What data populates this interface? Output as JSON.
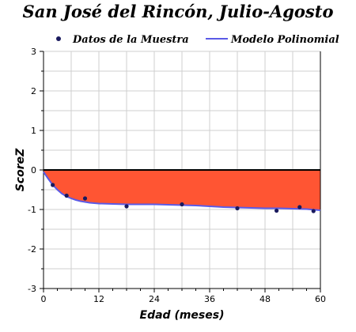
{
  "chart_data": {
    "type": "scatter",
    "title": "San José del Rincón, Julio-Agosto",
    "xlabel": "Edad (meses)",
    "ylabel": "ScoreZ",
    "xlim": [
      0,
      60
    ],
    "ylim": [
      -3,
      3
    ],
    "xticks": [
      0,
      12,
      24,
      36,
      48,
      60
    ],
    "yticks": [
      -3,
      -2,
      -1,
      0,
      1,
      2,
      3
    ],
    "grid": true,
    "legend_position": "top",
    "colors": {
      "points": "#1a1a5e",
      "model_line": "#5a5ae6",
      "fill": "#ff5533",
      "zero_line": "#000000"
    },
    "series": [
      {
        "name": "Datos de la Muestra",
        "kind": "points",
        "x": [
          2,
          5,
          9,
          18,
          30,
          42,
          50.5,
          55.5,
          58.5
        ],
        "y": [
          -0.38,
          -0.65,
          -0.72,
          -0.92,
          -0.87,
          -0.97,
          -1.03,
          -0.94,
          -1.04
        ]
      },
      {
        "name": "Modelo Polinomial",
        "kind": "line",
        "x": [
          0,
          1,
          2,
          3,
          4,
          5,
          6,
          7,
          8,
          9,
          10,
          12,
          15,
          18,
          21,
          24,
          27,
          30,
          33,
          36,
          39,
          42,
          45,
          48,
          51,
          54,
          57,
          60
        ],
        "y": [
          -0.05,
          -0.22,
          -0.38,
          -0.5,
          -0.6,
          -0.67,
          -0.72,
          -0.76,
          -0.79,
          -0.81,
          -0.83,
          -0.85,
          -0.86,
          -0.87,
          -0.87,
          -0.87,
          -0.88,
          -0.89,
          -0.9,
          -0.92,
          -0.94,
          -0.95,
          -0.96,
          -0.97,
          -0.97,
          -0.98,
          -0.99,
          -1.02
        ]
      }
    ]
  }
}
